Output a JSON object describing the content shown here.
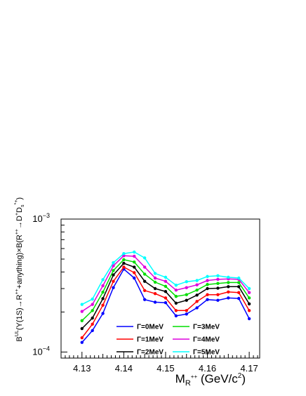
{
  "chart_data": {
    "type": "line",
    "title": "",
    "xlabel_main": "M",
    "xlabel_sub": "R",
    "xlabel_sup": "++",
    "xlabel_units": " (GeV/c",
    "xlabel_units_sup": "2",
    "xlabel_units_close": ")",
    "ylabel": "B^{UL}(Υ(1S)→R^{++}+anything)×B(R^{++}→D^{+}D_{s}^{*+})",
    "ylabel_parts": {
      "p1": "B",
      "p1_sup": "UL",
      "p2": "(Υ(1S)→R",
      "p2_sup": "++",
      "p3": "+anything)×B(R",
      "p3_sup": "++",
      "p4": "→D",
      "p4_sup": "+",
      "p5": "D",
      "p5_sup": "*+",
      "p5_sub": "s",
      "p6": ")"
    },
    "xlim": [
      4.125,
      4.1725
    ],
    "ylim": [
      9e-05,
      0.001
    ],
    "y_scale": "log",
    "x_ticks": [
      "4.13",
      "4.14",
      "4.15",
      "4.16",
      "4.17"
    ],
    "x_tick_values": [
      4.13,
      4.14,
      4.15,
      4.16,
      4.17
    ],
    "y_tick_labels": [
      {
        "value": 0.001,
        "base": "10",
        "exp": "−3"
      },
      {
        "value": 0.0001,
        "base": "10",
        "exp": "−4"
      }
    ],
    "x": [
      4.13,
      4.1325,
      4.135,
      4.1375,
      4.14,
      4.1425,
      4.145,
      4.1475,
      4.15,
      4.1525,
      4.155,
      4.1575,
      4.16,
      4.1625,
      4.165,
      4.1675,
      4.17
    ],
    "legend_placement": "bottom-center",
    "series": [
      {
        "name": "Γ=0MeV",
        "color": "#0000ff",
        "values": [
          0.000118,
          0.000145,
          0.000195,
          0.000305,
          0.00042,
          0.00036,
          0.000248,
          0.000237,
          0.000235,
          0.000187,
          0.000193,
          0.000215,
          0.000248,
          0.000245,
          0.000255,
          0.000253,
          0.000178
        ]
      },
      {
        "name": "Γ=1MeV",
        "color": "#ff0000",
        "values": [
          0.000128,
          0.000162,
          0.000225,
          0.00034,
          0.000435,
          0.000395,
          0.00029,
          0.000275,
          0.000255,
          0.000205,
          0.000205,
          0.00024,
          0.00027,
          0.00027,
          0.000283,
          0.00028,
          0.000205
        ]
      },
      {
        "name": "Γ=2MeV",
        "color": "#000000",
        "values": [
          0.00015,
          0.00018,
          0.000252,
          0.00038,
          0.000465,
          0.000435,
          0.00034,
          0.0003,
          0.000285,
          0.000233,
          0.000245,
          0.000268,
          0.0003,
          0.000302,
          0.00031,
          0.00031,
          0.00023
        ]
      },
      {
        "name": "Γ=3MeV",
        "color": "#00dd00",
        "values": [
          0.000172,
          0.000205,
          0.000282,
          0.00041,
          0.000495,
          0.000475,
          0.000385,
          0.000335,
          0.000312,
          0.000262,
          0.00027,
          0.000292,
          0.000322,
          0.000328,
          0.000333,
          0.000333,
          0.000255
        ]
      },
      {
        "name": "Γ=4MeV",
        "color": "#dd00dd",
        "values": [
          0.000202,
          0.000228,
          0.000315,
          0.000445,
          0.00053,
          0.000525,
          0.000435,
          0.00036,
          0.00034,
          0.000292,
          0.000305,
          0.00032,
          0.000345,
          0.000352,
          0.000355,
          0.000352,
          0.00028
        ]
      },
      {
        "name": "Γ=5MeV",
        "color": "#00ffff",
        "values": [
          0.000228,
          0.00025,
          0.00035,
          0.00047,
          0.00055,
          0.000565,
          0.00051,
          0.00039,
          0.000365,
          0.000318,
          0.000338,
          0.000345,
          0.00037,
          0.000375,
          0.000365,
          0.00036,
          0.0003
        ]
      }
    ]
  }
}
